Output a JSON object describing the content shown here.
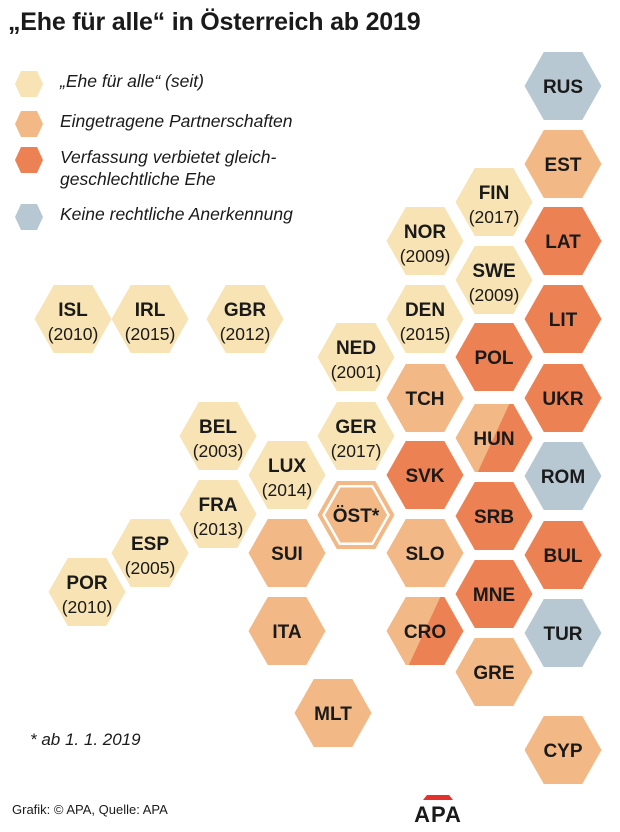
{
  "title": "„Ehe für alle“ in Österreich ab 2019",
  "colors": {
    "marriage": "#f7e3b3",
    "partnership": "#f2b886",
    "ban": "#ec8253",
    "none": "#b8c8d3",
    "text": "#1a1a1a"
  },
  "legend": [
    {
      "key": "marriage",
      "label": "„Ehe für alle“ (seit)"
    },
    {
      "key": "partnership",
      "label": "Eingetragene Partnerschaften"
    },
    {
      "key": "ban",
      "label": "Verfassung verbietet gleich-\ngeschlechtliche Ehe"
    },
    {
      "key": "none",
      "label": "Keine rechtliche Anerkennung"
    }
  ],
  "countries": [
    {
      "code": "RUS",
      "status": "none"
    },
    {
      "code": "EST",
      "status": "partnership"
    },
    {
      "code": "FIN",
      "status": "marriage",
      "year": "(2017)"
    },
    {
      "code": "LAT",
      "status": "ban"
    },
    {
      "code": "NOR",
      "status": "marriage",
      "year": "(2009)"
    },
    {
      "code": "SWE",
      "status": "marriage",
      "year": "(2009)"
    },
    {
      "code": "ISL",
      "status": "marriage",
      "year": "(2010)"
    },
    {
      "code": "IRL",
      "status": "marriage",
      "year": "(2015)"
    },
    {
      "code": "GBR",
      "status": "marriage",
      "year": "(2012)"
    },
    {
      "code": "DEN",
      "status": "marriage",
      "year": "(2015)"
    },
    {
      "code": "LIT",
      "status": "ban"
    },
    {
      "code": "NED",
      "status": "marriage",
      "year": "(2001)"
    },
    {
      "code": "POL",
      "status": "ban"
    },
    {
      "code": "TCH",
      "status": "partnership"
    },
    {
      "code": "UKR",
      "status": "ban"
    },
    {
      "code": "BEL",
      "status": "marriage",
      "year": "(2003)"
    },
    {
      "code": "GER",
      "status": "marriage",
      "year": "(2017)"
    },
    {
      "code": "HUN",
      "status": "partnership",
      "status2": "ban"
    },
    {
      "code": "LUX",
      "status": "marriage",
      "year": "(2014)"
    },
    {
      "code": "SVK",
      "status": "ban"
    },
    {
      "code": "ROM",
      "status": "none"
    },
    {
      "code": "FRA",
      "status": "marriage",
      "year": "(2013)"
    },
    {
      "code": "ÖST*",
      "status": "partnership",
      "highlight": true
    },
    {
      "code": "SRB",
      "status": "ban"
    },
    {
      "code": "ESP",
      "status": "marriage",
      "year": "(2005)"
    },
    {
      "code": "SUI",
      "status": "partnership"
    },
    {
      "code": "SLO",
      "status": "partnership"
    },
    {
      "code": "BUL",
      "status": "ban"
    },
    {
      "code": "POR",
      "status": "marriage",
      "year": "(2010)"
    },
    {
      "code": "MNE",
      "status": "ban"
    },
    {
      "code": "ITA",
      "status": "partnership"
    },
    {
      "code": "CRO",
      "status": "partnership",
      "status2": "ban"
    },
    {
      "code": "TUR",
      "status": "none"
    },
    {
      "code": "GRE",
      "status": "partnership"
    },
    {
      "code": "MLT",
      "status": "partnership"
    },
    {
      "code": "CYP",
      "status": "partnership"
    }
  ],
  "footnote": "* ab 1. 1. 2019",
  "credit": "Grafik: © APA, Quelle: APA",
  "logo": "APA"
}
